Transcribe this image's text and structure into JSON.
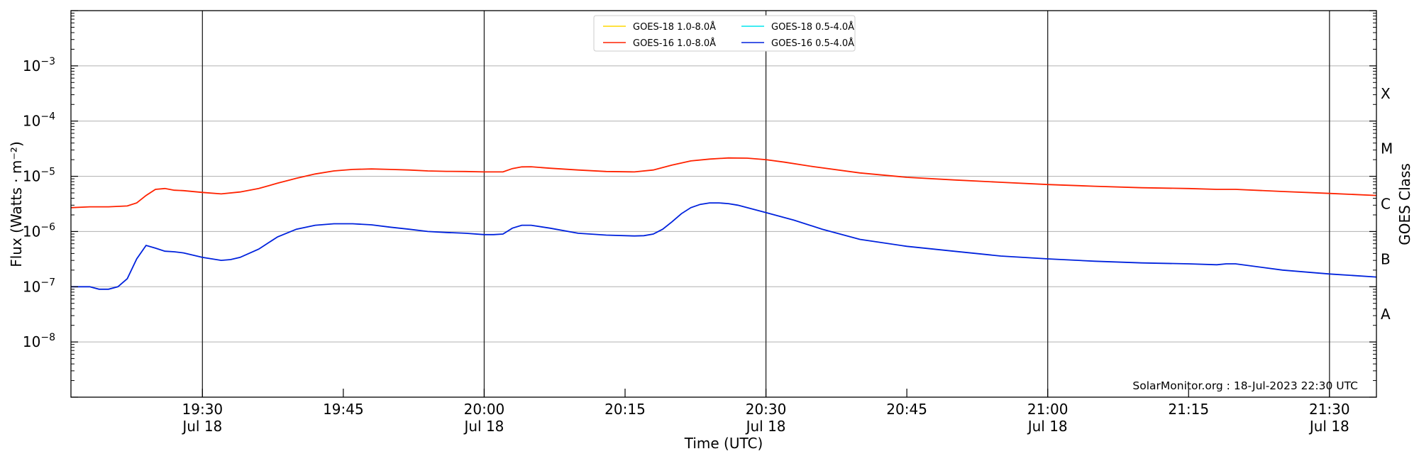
{
  "chart_data": {
    "type": "line",
    "xlabel": "Time (UTC)",
    "ylabel": "Flux (Watts · m⁻²)",
    "y2label": "GOES Class",
    "y_scale": "log",
    "ylim": [
      "1e-9",
      "1e-2"
    ],
    "xlim": [
      "19:16",
      "21:35"
    ],
    "grid": "horizontal at decades",
    "legend_placement": "top-center",
    "x_ticks": [
      {
        "t": "19:30",
        "label": "19:30",
        "sublabel": "Jul 18"
      },
      {
        "t": "19:45",
        "label": "19:45",
        "sublabel": ""
      },
      {
        "t": "20:00",
        "label": "20:00",
        "sublabel": "Jul 18"
      },
      {
        "t": "20:15",
        "label": "20:15",
        "sublabel": ""
      },
      {
        "t": "20:30",
        "label": "20:30",
        "sublabel": "Jul 18"
      },
      {
        "t": "20:45",
        "label": "20:45",
        "sublabel": ""
      },
      {
        "t": "21:00",
        "label": "21:00",
        "sublabel": "Jul 18"
      },
      {
        "t": "21:15",
        "label": "21:15",
        "sublabel": ""
      },
      {
        "t": "21:30",
        "label": "21:30",
        "sublabel": "Jul 18"
      }
    ],
    "vertical_lines": [
      "19:30",
      "20:00",
      "20:30",
      "21:00",
      "21:30"
    ],
    "y_ticks": [
      {
        "exp": -8,
        "label": "10",
        "sup": "−8"
      },
      {
        "exp": -7,
        "label": "10",
        "sup": "−7"
      },
      {
        "exp": -6,
        "label": "10",
        "sup": "−6"
      },
      {
        "exp": -5,
        "label": "10",
        "sup": "−5"
      },
      {
        "exp": -4,
        "label": "10",
        "sup": "−4"
      },
      {
        "exp": -3,
        "label": "10",
        "sup": "−3"
      }
    ],
    "goes_classes": [
      {
        "label": "A",
        "exp": -7.5
      },
      {
        "label": "B",
        "exp": -6.5
      },
      {
        "label": "C",
        "exp": -5.5
      },
      {
        "label": "M",
        "exp": -4.5
      },
      {
        "label": "X",
        "exp": -3.5
      }
    ],
    "annotation": "SolarMonitor.org : 18-Jul-2023 22:30 UTC",
    "series": [
      {
        "name": "GOES-18 1.0-8.0Å",
        "color": "#ffd700",
        "x": [],
        "y": []
      },
      {
        "name": "GOES-16 1.0-8.0Å",
        "color": "#ff2200",
        "x": [
          "19:16",
          "19:18",
          "19:20",
          "19:22",
          "19:23",
          "19:24",
          "19:25",
          "19:26",
          "19:27",
          "19:28",
          "19:30",
          "19:32",
          "19:34",
          "19:36",
          "19:38",
          "19:40",
          "19:42",
          "19:44",
          "19:46",
          "19:48",
          "19:50",
          "19:52",
          "19:54",
          "19:56",
          "19:58",
          "20:00",
          "20:02",
          "20:03",
          "20:04",
          "20:05",
          "20:07",
          "20:10",
          "20:13",
          "20:16",
          "20:18",
          "20:20",
          "20:22",
          "20:24",
          "20:26",
          "20:28",
          "20:30",
          "20:32",
          "20:35",
          "20:40",
          "20:45",
          "20:50",
          "20:55",
          "21:00",
          "21:05",
          "21:10",
          "21:15",
          "21:18",
          "21:20",
          "21:25",
          "21:30",
          "21:35"
        ],
        "y": [
          2.7e-06,
          2.8e-06,
          2.8e-06,
          2.9e-06,
          3.3e-06,
          4.5e-06,
          5.8e-06,
          6e-06,
          5.6e-06,
          5.5e-06,
          5.1e-06,
          4.8e-06,
          5.2e-06,
          6e-06,
          7.5e-06,
          9.2e-06,
          1.1e-05,
          1.25e-05,
          1.33e-05,
          1.36e-05,
          1.33e-05,
          1.3e-05,
          1.25e-05,
          1.23e-05,
          1.22e-05,
          1.2e-05,
          1.2e-05,
          1.38e-05,
          1.48e-05,
          1.49e-05,
          1.4e-05,
          1.3e-05,
          1.22e-05,
          1.2e-05,
          1.3e-05,
          1.6e-05,
          1.9e-05,
          2.05e-05,
          2.15e-05,
          2.13e-05,
          2e-05,
          1.8e-05,
          1.5e-05,
          1.15e-05,
          9.6e-06,
          8.6e-06,
          7.8e-06,
          7.1e-06,
          6.6e-06,
          6.2e-06,
          6e-06,
          5.8e-06,
          5.8e-06,
          5.3e-06,
          4.9e-06,
          4.5e-06
        ]
      },
      {
        "name": "GOES-18 0.5-4.0Å",
        "color": "#00e5ee",
        "x": [],
        "y": []
      },
      {
        "name": "GOES-16 0.5-4.0Å",
        "color": "#0022dd",
        "x": [
          "19:16",
          "19:18",
          "19:19",
          "19:20",
          "19:21",
          "19:22",
          "19:23",
          "19:24",
          "19:25",
          "19:26",
          "19:27",
          "19:28",
          "19:30",
          "19:32",
          "19:33",
          "19:34",
          "19:36",
          "19:38",
          "19:40",
          "19:42",
          "19:44",
          "19:46",
          "19:48",
          "19:50",
          "19:52",
          "19:54",
          "19:56",
          "19:58",
          "20:00",
          "20:01",
          "20:02",
          "20:03",
          "20:04",
          "20:05",
          "20:07",
          "20:10",
          "20:13",
          "20:16",
          "20:17",
          "20:18",
          "20:19",
          "20:20",
          "20:21",
          "20:22",
          "20:23",
          "20:24",
          "20:25",
          "20:26",
          "20:27",
          "20:28",
          "20:30",
          "20:33",
          "20:36",
          "20:40",
          "20:45",
          "20:50",
          "20:55",
          "21:00",
          "21:05",
          "21:10",
          "21:15",
          "21:18",
          "21:19",
          "21:20",
          "21:25",
          "21:30",
          "21:35"
        ],
        "y": [
          1e-07,
          1e-07,
          9e-08,
          9e-08,
          1e-07,
          1.4e-07,
          3.2e-07,
          5.6e-07,
          5e-07,
          4.4e-07,
          4.3e-07,
          4.1e-07,
          3.4e-07,
          3e-07,
          3.1e-07,
          3.4e-07,
          4.8e-07,
          8e-07,
          1.1e-06,
          1.3e-06,
          1.38e-06,
          1.38e-06,
          1.32e-06,
          1.2e-06,
          1.1e-06,
          1e-06,
          9.6e-07,
          9.3e-07,
          8.8e-07,
          8.8e-07,
          9e-07,
          1.15e-06,
          1.3e-06,
          1.3e-06,
          1.15e-06,
          9.3e-07,
          8.6e-07,
          8.3e-07,
          8.4e-07,
          9e-07,
          1.1e-06,
          1.5e-06,
          2.1e-06,
          2.7e-06,
          3.1e-06,
          3.3e-06,
          3.3e-06,
          3.2e-06,
          3e-06,
          2.7e-06,
          2.2e-06,
          1.6e-06,
          1.1e-06,
          7.2e-07,
          5.4e-07,
          4.4e-07,
          3.6e-07,
          3.2e-07,
          2.9e-07,
          2.7e-07,
          2.6e-07,
          2.5e-07,
          2.6e-07,
          2.6e-07,
          2e-07,
          1.7e-07,
          1.5e-07
        ]
      }
    ]
  }
}
